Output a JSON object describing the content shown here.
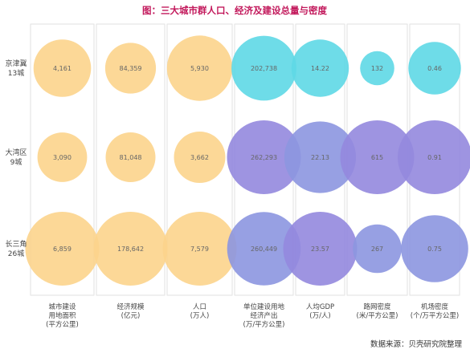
{
  "chart_data": {
    "type": "bubble-matrix",
    "title": "图：三大城市群人口、经济及建设总量与密度",
    "source": "数据来源：贝壳研究院整理",
    "rows": [
      {
        "name": "京津冀",
        "sub": "13城"
      },
      {
        "name": "大湾区",
        "sub": "9城"
      },
      {
        "name": "长三角",
        "sub": "26城"
      }
    ],
    "columns": [
      {
        "label": [
          "城市建设",
          "用地面积",
          "(平方公里)"
        ],
        "group": "total",
        "values": [
          4161,
          3090,
          6859
        ],
        "labels": [
          "4,161",
          "3,090",
          "6,859"
        ]
      },
      {
        "label": [
          "经济规模",
          "(亿元)"
        ],
        "group": "total",
        "values": [
          84359,
          81048,
          178642
        ],
        "labels": [
          "84,359",
          "81,048",
          "178,642"
        ]
      },
      {
        "label": [
          "人口",
          "(万人)"
        ],
        "group": "total",
        "values": [
          5930,
          3662,
          7579
        ],
        "labels": [
          "5,930",
          "3,662",
          "7,579"
        ]
      },
      {
        "label": [
          "单位建设用地",
          "经济产出",
          "(万/平方公里)"
        ],
        "group": "density",
        "values": [
          202738,
          262293,
          260449
        ],
        "labels": [
          "202,738",
          "262,293",
          "260,449"
        ]
      },
      {
        "label": [
          "人均GDP",
          "(万/人)"
        ],
        "group": "density",
        "values": [
          14.22,
          22.13,
          23.57
        ],
        "labels": [
          "14.22",
          "22.13",
          "23.57"
        ]
      },
      {
        "label": [
          "路网密度",
          "(米/平方公里)"
        ],
        "group": "density",
        "values": [
          132,
          615,
          267
        ],
        "labels": [
          "132",
          "615",
          "267"
        ]
      },
      {
        "label": [
          "机场密度",
          "(个/万平方公里)"
        ],
        "group": "density",
        "values": [
          0.46,
          0.91,
          0.75
        ],
        "labels": [
          "0.46",
          "0.91",
          "0.75"
        ]
      }
    ],
    "colors": {
      "total": "#fcd48c",
      "density_high": "#9488de",
      "density_mid": "#8c96e0",
      "density_low": "#5ed8e6",
      "border": "#e2e2e2"
    }
  }
}
